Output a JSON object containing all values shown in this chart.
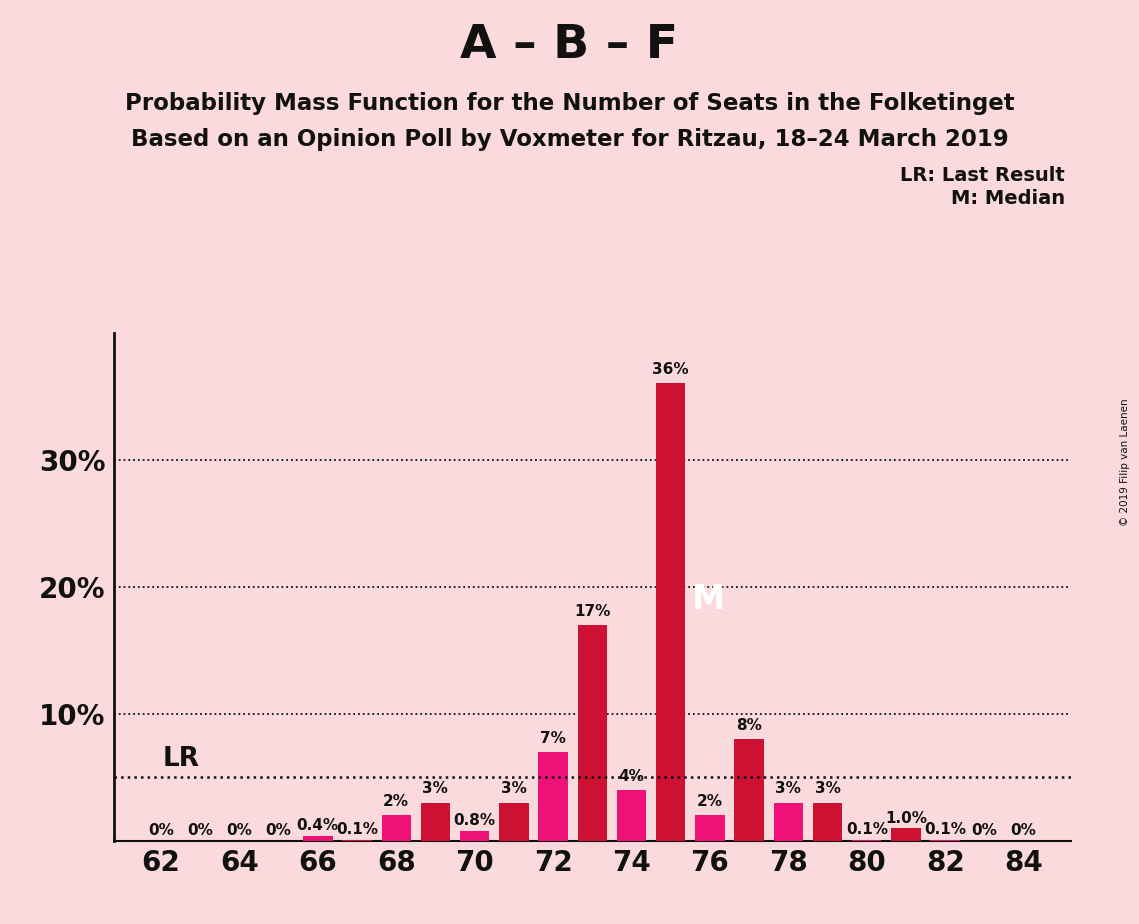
{
  "title": "A – B – F",
  "subtitle1": "Probability Mass Function for the Number of Seats in the Folketinget",
  "subtitle2": "Based on an Opinion Poll by Voxmeter for Ritzau, 18–24 March 2019",
  "copyright": "© 2019 Filip van Laenen",
  "legend_lr": "LR: Last Result",
  "legend_m": "M: Median",
  "background_color": "#FADADD",
  "bar_color_crimson": "#CC1133",
  "bar_color_pink": "#EE1177",
  "seats": [
    62,
    63,
    64,
    65,
    66,
    67,
    68,
    69,
    70,
    71,
    72,
    73,
    74,
    75,
    76,
    77,
    78,
    79,
    80,
    81,
    82,
    83,
    84
  ],
  "probabilities": [
    0.0,
    0.0,
    0.0,
    0.0,
    0.4,
    0.1,
    2.0,
    3.0,
    0.8,
    3.0,
    7.0,
    17.0,
    4.0,
    36.0,
    2.0,
    8.0,
    3.0,
    3.0,
    0.1,
    1.0,
    0.1,
    0.0,
    0.0
  ],
  "bar_colors": [
    "#CC1133",
    "#EE1177",
    "#CC1133",
    "#EE1177",
    "#EE1177",
    "#CC1133",
    "#EE1177",
    "#CC1133",
    "#EE1177",
    "#CC1133",
    "#EE1177",
    "#CC1133",
    "#EE1177",
    "#CC1133",
    "#EE1177",
    "#CC1133",
    "#EE1177",
    "#CC1133",
    "#EE1177",
    "#CC1133",
    "#EE1177",
    "#CC1133",
    "#EE1177"
  ],
  "lr_value": 5.0,
  "median_seat": 75,
  "xticks": [
    62,
    64,
    66,
    68,
    70,
    72,
    74,
    76,
    78,
    80,
    82,
    84
  ],
  "ytick_vals": [
    0,
    10,
    20,
    30
  ],
  "ylim": [
    0,
    40
  ],
  "bar_width": 0.75
}
